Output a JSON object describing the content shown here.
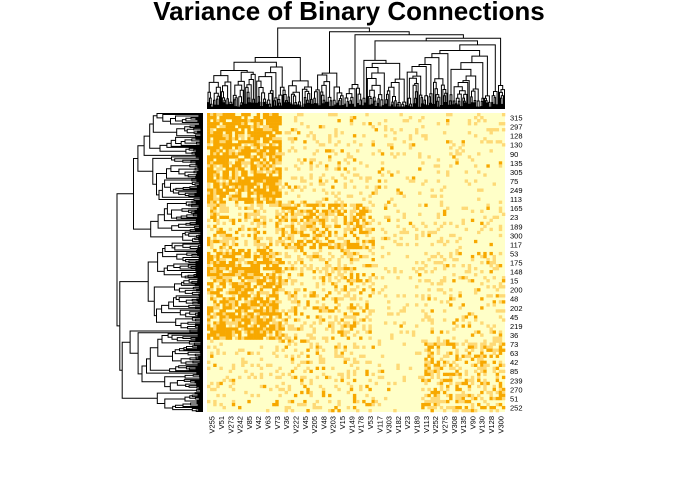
{
  "chart_data": {
    "type": "heatmap",
    "title": "Variance of Binary Connections",
    "xlabel": "",
    "ylabel": "",
    "col_dendrogram": true,
    "row_dendrogram": true,
    "legend": "none",
    "colors": {
      "low": "#ffffc8",
      "mid": "#fed976",
      "high": "#f7a800",
      "dendrogram": "#000000"
    },
    "row_labels": [
      "315",
      "297",
      "128",
      "130",
      "90",
      "135",
      "305",
      "75",
      "249",
      "113",
      "165",
      "23",
      "189",
      "300",
      "117",
      "53",
      "175",
      "148",
      "15",
      "200",
      "48",
      "202",
      "45",
      "219",
      "36",
      "73",
      "63",
      "42",
      "85",
      "239",
      "270",
      "51",
      "252"
    ],
    "col_labels": [
      "V255",
      "V51",
      "V273",
      "V242",
      "V85",
      "V42",
      "V63",
      "V73",
      "V36",
      "V222",
      "V45",
      "V205",
      "V48",
      "V203",
      "V15",
      "V149",
      "V178",
      "V53",
      "V117",
      "V303",
      "V182",
      "V23",
      "V189",
      "V113",
      "V252",
      "V275",
      "V308",
      "V135",
      "V90",
      "V130",
      "V128",
      "V300"
    ],
    "row_blocks": [
      {
        "label": "315",
        "group": 1
      },
      {
        "label": "297",
        "group": 1
      },
      {
        "label": "128",
        "group": 1
      },
      {
        "label": "130",
        "group": 1
      },
      {
        "label": "90",
        "group": 1
      },
      {
        "label": "135",
        "group": 1
      },
      {
        "label": "305",
        "group": 1
      },
      {
        "label": "75",
        "group": 1
      },
      {
        "label": "249",
        "group": 1
      },
      {
        "label": "113",
        "group": 1
      },
      {
        "label": "165",
        "group": 2
      },
      {
        "label": "23",
        "group": 2
      },
      {
        "label": "189",
        "group": 2
      },
      {
        "label": "300",
        "group": 2
      },
      {
        "label": "117",
        "group": 2
      },
      {
        "label": "53",
        "group": 3
      },
      {
        "label": "175",
        "group": 3
      },
      {
        "label": "148",
        "group": 3
      },
      {
        "label": "15",
        "group": 3
      },
      {
        "label": "200",
        "group": 3
      },
      {
        "label": "48",
        "group": 3
      },
      {
        "label": "202",
        "group": 3
      },
      {
        "label": "45",
        "group": 3
      },
      {
        "label": "219",
        "group": 3
      },
      {
        "label": "36",
        "group": 3
      },
      {
        "label": "73",
        "group": 4
      },
      {
        "label": "63",
        "group": 4
      },
      {
        "label": "42",
        "group": 4
      },
      {
        "label": "85",
        "group": 4
      },
      {
        "label": "239",
        "group": 4
      },
      {
        "label": "270",
        "group": 4
      },
      {
        "label": "51",
        "group": 4
      },
      {
        "label": "252",
        "group": 4
      }
    ],
    "col_groups": [
      1,
      1,
      1,
      1,
      1,
      1,
      1,
      1,
      3,
      3,
      3,
      3,
      3,
      3,
      3,
      3,
      3,
      3,
      2,
      2,
      2,
      2,
      2,
      4,
      4,
      4,
      4,
      4,
      4,
      4,
      4,
      4
    ],
    "block_intensity": [
      [
        0.8,
        0.15,
        0.2,
        0.1
      ],
      [
        0.4,
        0.1,
        0.6,
        0.15
      ],
      [
        0.75,
        0.1,
        0.35,
        0.2
      ],
      [
        0.15,
        0.05,
        0.25,
        0.45
      ]
    ]
  }
}
